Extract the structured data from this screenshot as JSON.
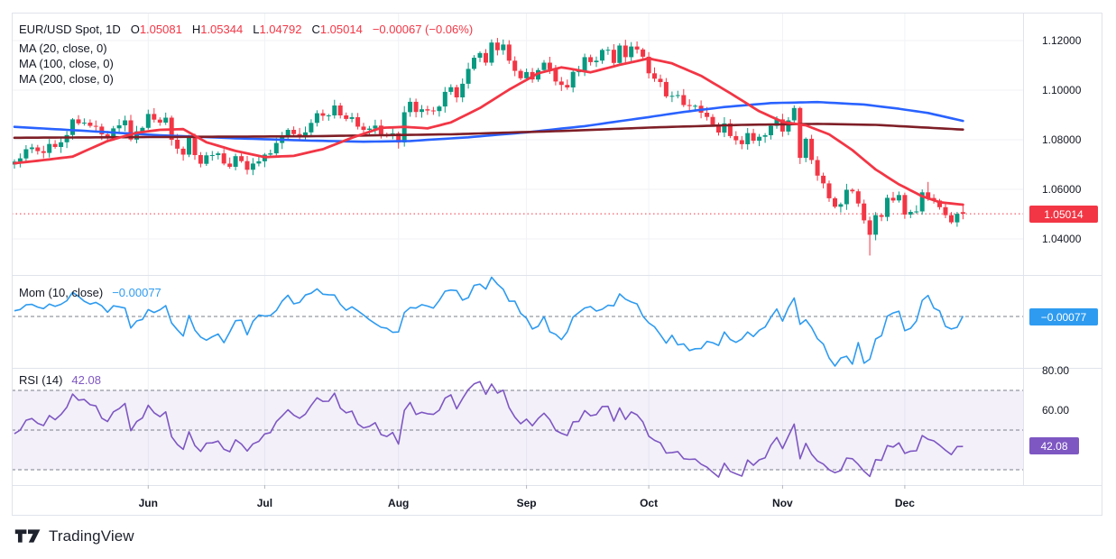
{
  "header": {
    "symbol_title": "EUR/USD Spot, 1D",
    "ohlc": {
      "o_label": "O",
      "o": "1.05081",
      "h_label": "H",
      "h": "1.05344",
      "l_label": "L",
      "l": "1.04792",
      "c_label": "C",
      "c": "1.05014",
      "change": "−0.00067 (−0.06%)"
    },
    "ma_labels": [
      "MA (20, close, 0)",
      "MA (100, close, 0)",
      "MA (200, close, 0)"
    ]
  },
  "mom_panel": {
    "label": "Mom (10, close)",
    "value": "−0.00077"
  },
  "rsi_panel": {
    "label": "RSI (14)",
    "value": "42.08"
  },
  "price_axis": {
    "ticks": [
      "1.12000",
      "1.10000",
      "1.08000",
      "1.06000",
      "1.04000"
    ],
    "tick_values": [
      1.12,
      1.1,
      1.08,
      1.06,
      1.04
    ],
    "last_price_badge": "1.05014",
    "last_price": 1.05014
  },
  "mom_axis": {
    "badge": "−0.00077",
    "value": -0.00077
  },
  "rsi_axis": {
    "ticks": [
      "80.00",
      "60.00"
    ],
    "tick_values": [
      80,
      60
    ],
    "badge": "42.08",
    "value": 42.08
  },
  "time_axis": {
    "months": [
      "Jun",
      "Jul",
      "Aug",
      "Sep",
      "Oct",
      "Nov",
      "Dec"
    ],
    "month_indices": [
      23,
      43,
      66,
      88,
      109,
      132,
      153
    ]
  },
  "footer": {
    "brand": "TradingView"
  },
  "colors": {
    "up": "#089981",
    "down": "#F23645",
    "ma20": "#F23645",
    "ma100": "#2962FF",
    "ma200": "#7E1E26",
    "mom": "#2E9BF0",
    "rsi": "#7E57C2",
    "rsi_band": "rgba(126,87,194,0.09)",
    "grid": "#F0F2F6",
    "border": "#E0E3EB",
    "dashed": "#7B7F8A",
    "last_price_line": "#F23645",
    "axis_text": "#131722"
  },
  "chart_data": {
    "type": "candlestick",
    "symbol": "EUR/USD Spot",
    "interval": "1D",
    "last": {
      "open": 1.05081,
      "high": 1.05344,
      "low": 1.04792,
      "close": 1.05014,
      "change": -0.00067,
      "change_pct": -0.06
    },
    "ylim": [
      1.033,
      1.125
    ],
    "price_range_note": "daily closes, May through Dec 16, read off chart",
    "closes": [
      1.0712,
      1.0725,
      1.0762,
      1.0769,
      1.0754,
      1.0747,
      1.0783,
      1.0771,
      1.079,
      1.0819,
      1.0882,
      1.0866,
      1.0869,
      1.0856,
      1.0853,
      1.0822,
      1.0813,
      1.0846,
      1.0858,
      1.0878,
      1.0801,
      1.0834,
      1.0848,
      1.0904,
      1.0881,
      1.0869,
      1.0889,
      1.08,
      1.0764,
      1.074,
      1.0808,
      1.0738,
      1.0703,
      1.0737,
      1.0738,
      1.0745,
      1.0704,
      1.0691,
      1.0734,
      1.0714,
      1.0679,
      1.0704,
      1.0713,
      1.074,
      1.0745,
      1.0787,
      1.0812,
      1.084,
      1.0823,
      1.0813,
      1.083,
      1.0868,
      1.0907,
      1.0897,
      1.0898,
      1.0938,
      1.0898,
      1.0884,
      1.0891,
      1.0853,
      1.084,
      1.0845,
      1.0857,
      1.0821,
      1.0815,
      1.0826,
      1.0789,
      1.0911,
      1.0953,
      1.0912,
      1.0923,
      1.0918,
      1.0916,
      1.0934,
      1.0993,
      1.1012,
      1.0971,
      1.1026,
      1.1086,
      1.1131,
      1.115,
      1.1111,
      1.1192,
      1.1161,
      1.1184,
      1.1119,
      1.1078,
      1.1048,
      1.1073,
      1.1043,
      1.1081,
      1.1111,
      1.1084,
      1.1035,
      1.1021,
      1.1011,
      1.1074,
      1.1076,
      1.1133,
      1.1113,
      1.1119,
      1.1162,
      1.1163,
      1.111,
      1.118,
      1.1133,
      1.1176,
      1.1164,
      1.1135,
      1.1068,
      1.1046,
      1.1033,
      1.0975,
      1.0977,
      1.098,
      1.094,
      1.0936,
      1.0937,
      1.0909,
      1.0892,
      1.0861,
      1.0829,
      1.0866,
      1.0815,
      1.0798,
      1.0782,
      1.0827,
      1.0796,
      1.0812,
      1.0818,
      1.0856,
      1.0882,
      1.0833,
      1.0878,
      1.0928,
      1.0727,
      1.0804,
      1.0718,
      1.0655,
      1.0624,
      1.0564,
      1.053,
      1.054,
      1.0598,
      1.0592,
      1.0543,
      1.0475,
      1.0417,
      1.0496,
      1.0489,
      1.0566,
      1.0555,
      1.0577,
      1.0498,
      1.0509,
      1.0511,
      1.0588,
      1.0565,
      1.0555,
      1.0528,
      1.0496,
      1.0467,
      1.0501,
      1.05014
    ],
    "wick_overrides": {
      "147": {
        "low": 1.0333
      },
      "157": {
        "high": 1.063
      }
    },
    "overlays": [
      {
        "name": "MA20",
        "anchors": [
          [
            0,
            1.0705
          ],
          [
            5,
            1.0718
          ],
          [
            10,
            1.0732
          ],
          [
            16,
            1.0795
          ],
          [
            21,
            1.0828
          ],
          [
            25,
            1.084
          ],
          [
            29,
            1.0843
          ],
          [
            33,
            1.079
          ],
          [
            38,
            1.0755
          ],
          [
            43,
            1.073
          ],
          [
            48,
            1.0735
          ],
          [
            53,
            1.0762
          ],
          [
            58,
            1.0808
          ],
          [
            63,
            1.0848
          ],
          [
            67,
            1.0852
          ],
          [
            71,
            1.0846
          ],
          [
            75,
            1.087
          ],
          [
            80,
            1.0928
          ],
          [
            85,
            1.1002
          ],
          [
            90,
            1.1068
          ],
          [
            94,
            1.1092
          ],
          [
            99,
            1.1072
          ],
          [
            104,
            1.1102
          ],
          [
            109,
            1.1128
          ],
          [
            113,
            1.1108
          ],
          [
            118,
            1.1058
          ],
          [
            123,
            1.0988
          ],
          [
            128,
            1.0915
          ],
          [
            132,
            1.0872
          ],
          [
            136,
            1.0858
          ],
          [
            140,
            1.0822
          ],
          [
            144,
            1.0758
          ],
          [
            148,
            1.068
          ],
          [
            152,
            1.062
          ],
          [
            156,
            1.0572
          ],
          [
            159,
            1.0548
          ],
          [
            163,
            1.0538
          ]
        ]
      },
      {
        "name": "MA100",
        "anchors": [
          [
            0,
            1.0852
          ],
          [
            12,
            1.0836
          ],
          [
            25,
            1.0818
          ],
          [
            38,
            1.0806
          ],
          [
            50,
            1.0797
          ],
          [
            60,
            1.0792
          ],
          [
            68,
            1.0795
          ],
          [
            78,
            1.081
          ],
          [
            88,
            1.083
          ],
          [
            98,
            1.0855
          ],
          [
            108,
            1.0888
          ],
          [
            115,
            1.0912
          ],
          [
            122,
            1.0932
          ],
          [
            130,
            1.0948
          ],
          [
            138,
            1.0952
          ],
          [
            146,
            1.0942
          ],
          [
            152,
            1.0925
          ],
          [
            157,
            1.0908
          ],
          [
            163,
            1.0876
          ]
        ]
      },
      {
        "name": "MA200",
        "anchors": [
          [
            0,
            1.0808
          ],
          [
            25,
            1.0811
          ],
          [
            50,
            1.0814
          ],
          [
            75,
            1.0822
          ],
          [
            95,
            1.0836
          ],
          [
            110,
            1.085
          ],
          [
            125,
            1.086
          ],
          [
            138,
            1.0864
          ],
          [
            148,
            1.086
          ],
          [
            156,
            1.085
          ],
          [
            163,
            1.0841
          ]
        ]
      }
    ],
    "momentum": {
      "period": 10,
      "last": -0.00077
    },
    "rsi": {
      "period": 14,
      "last": 42.08,
      "levels": [
        70,
        50,
        30
      ],
      "band": [
        30,
        70
      ]
    }
  }
}
